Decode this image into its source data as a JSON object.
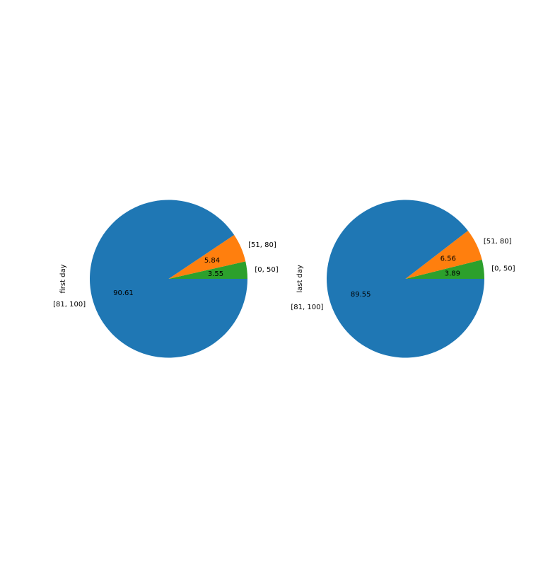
{
  "chart_data": [
    {
      "type": "pie",
      "ylabel": "first day",
      "categories": [
        "[0, 50]",
        "[51, 80]",
        "[81, 100]"
      ],
      "values": [
        3.55,
        5.84,
        90.61
      ],
      "value_labels": [
        "3.55",
        "5.84",
        "90.61"
      ],
      "colors": [
        "#2ca02c",
        "#ff7f0e",
        "#1f77b4"
      ],
      "start_angle_deg": 0,
      "direction": "counterclockwise"
    },
    {
      "type": "pie",
      "ylabel": "last day",
      "categories": [
        "[0, 50]",
        "[51, 80]",
        "[81, 100]"
      ],
      "values": [
        3.89,
        6.56,
        89.55
      ],
      "value_labels": [
        "3.89",
        "6.56",
        "89.55"
      ],
      "colors": [
        "#2ca02c",
        "#ff7f0e",
        "#1f77b4"
      ],
      "start_angle_deg": 0,
      "direction": "counterclockwise"
    }
  ]
}
